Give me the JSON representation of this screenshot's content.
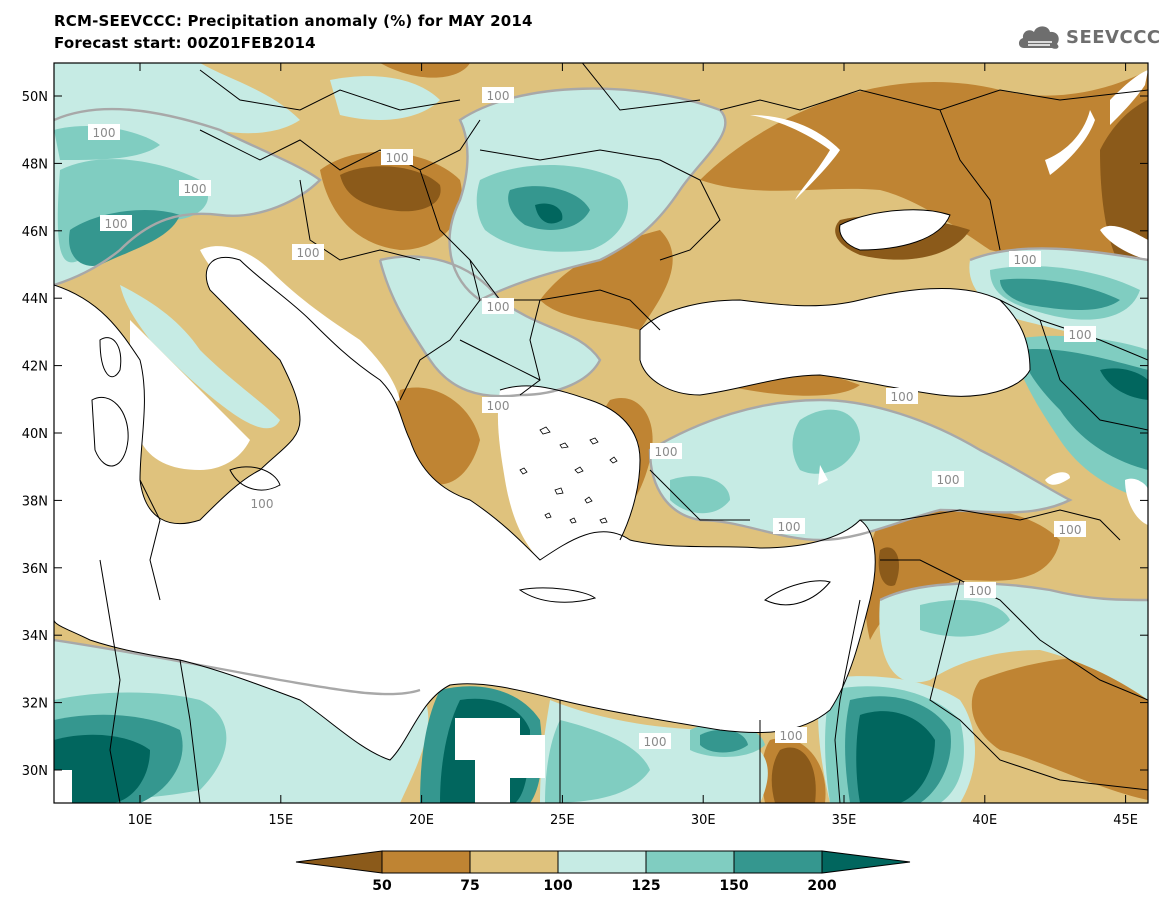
{
  "header": {
    "title": "RCM-SEEVCCC: Precipitation anomaly (%) for MAY 2014",
    "subtitle": "Forecast start: 00Z01FEB2014",
    "logo_text": "SEEVCCC"
  },
  "map": {
    "lat_labels": [
      "50N",
      "48N",
      "46N",
      "44N",
      "42N",
      "40N",
      "38N",
      "36N",
      "34N",
      "32N",
      "30N"
    ],
    "lon_labels": [
      "10E",
      "15E",
      "20E",
      "25E",
      "30E",
      "35E",
      "40E",
      "45E"
    ],
    "contour_label": "100",
    "legend": {
      "labels": [
        "50",
        "75",
        "100",
        "125",
        "150",
        "200"
      ],
      "colors": [
        "#8b5a1a",
        "#bf8433",
        "#dfc27d",
        "#c6ebe4",
        "#80cdc1",
        "#35978f",
        "#01665e"
      ]
    }
  }
}
